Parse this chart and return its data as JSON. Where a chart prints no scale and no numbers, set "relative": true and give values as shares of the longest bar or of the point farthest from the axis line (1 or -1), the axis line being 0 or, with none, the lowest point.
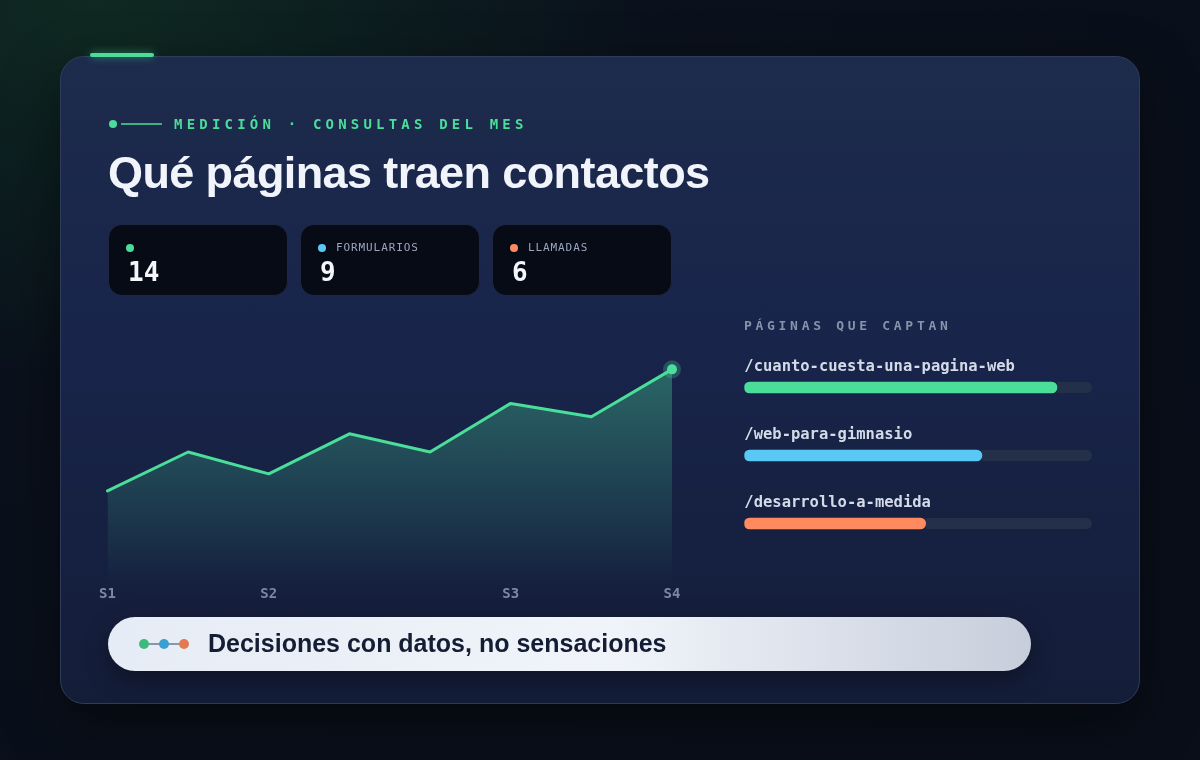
{
  "chart_data": [
    {
      "type": "other",
      "title": "Qué páginas traen contactos",
      "subtitle": "MEDICIÓN · CONSULTAS DEL MES",
      "categories": [
        null,
        "FORMULARIOS",
        "LLAMADAS"
      ],
      "values": [
        14,
        9,
        6
      ],
      "data_labels": true,
      "annotations": [
        "Decisiones con datos, no sensaciones"
      ]
    },
    {
      "type": "area",
      "categories": [
        "S1",
        null,
        "S2",
        null,
        null,
        "S3",
        null,
        "S4"
      ],
      "relative": true,
      "series": [
        {
          "color": "#4ade9a",
          "marker": "none",
          "values": [
            0,
            0.32,
            0.14,
            0.47,
            0.32,
            0.72,
            0.61,
            1
          ]
        },
        {
          "type": "scatter",
          "values": [
            null,
            null,
            null,
            null,
            null,
            null,
            null,
            1
          ],
          "color": "#4ade9a",
          "marker": "circle"
        }
      ]
    },
    {
      "type": "bar",
      "orientation": "horizontal",
      "title": "PÁGINAS QUE CAPTAN",
      "categories": [
        "/cuanto-cuesta-una-pagina-web",
        "/web-para-gimnasio",
        "/desarrollo-a-medida"
      ],
      "values": [
        1,
        0.76,
        0.58
      ],
      "colors": [
        "#4ade9a",
        "#5ac8f5",
        "#ff8a5f"
      ],
      "relative": true
    }
  ]
}
